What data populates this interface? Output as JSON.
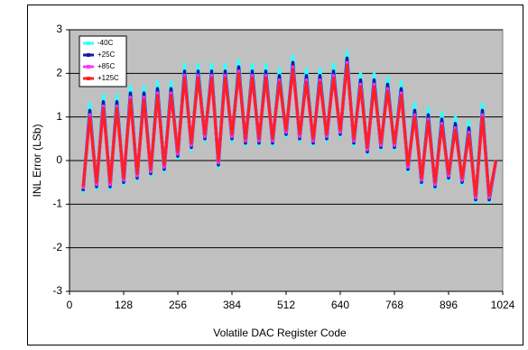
{
  "chart_data": {
    "type": "line",
    "x_label": "Volatile DAC Register Code",
    "y_label": "INL Error (LSb)",
    "x": [
      32,
      48,
      64,
      80,
      96,
      112,
      128,
      144,
      160,
      176,
      192,
      208,
      224,
      240,
      256,
      272,
      288,
      304,
      320,
      336,
      352,
      368,
      384,
      400,
      416,
      432,
      448,
      464,
      480,
      496,
      512,
      528,
      544,
      560,
      576,
      592,
      608,
      624,
      640,
      656,
      672,
      688,
      704,
      720,
      736,
      752,
      768,
      784,
      800,
      816,
      832,
      848,
      864,
      880,
      896,
      912,
      928,
      944,
      960,
      976,
      992,
      1008
    ],
    "series": [
      {
        "name": "-40C",
        "color": "#33ffff",
        "values": [
          -0.75,
          1.3,
          -0.65,
          1.5,
          -0.65,
          1.5,
          -0.55,
          1.7,
          -0.45,
          1.7,
          -0.35,
          1.8,
          -0.25,
          1.8,
          0.05,
          2.2,
          0.25,
          2.2,
          0.45,
          2.2,
          -0.15,
          2.2,
          0.45,
          2.3,
          0.35,
          2.2,
          0.35,
          2.2,
          0.35,
          2.1,
          0.55,
          2.4,
          0.45,
          2.1,
          0.35,
          2.1,
          0.45,
          2.2,
          0.55,
          2.5,
          0.35,
          2.0,
          0.15,
          2.0,
          0.25,
          1.9,
          0.25,
          1.8,
          -0.25,
          1.3,
          -0.55,
          1.2,
          -0.65,
          1.1,
          -0.45,
          1.0,
          -0.55,
          0.9,
          -0.95,
          1.3,
          -0.95,
          0.0
        ]
      },
      {
        "name": "+25C",
        "color": "#1a1aa6",
        "values": [
          -0.7,
          1.15,
          -0.6,
          1.35,
          -0.6,
          1.35,
          -0.5,
          1.55,
          -0.4,
          1.55,
          -0.3,
          1.65,
          -0.2,
          1.65,
          0.1,
          2.05,
          0.3,
          2.05,
          0.5,
          2.05,
          -0.1,
          2.05,
          0.5,
          2.15,
          0.4,
          2.05,
          0.4,
          2.05,
          0.4,
          1.95,
          0.6,
          2.25,
          0.5,
          1.95,
          0.4,
          1.95,
          0.5,
          2.05,
          0.6,
          2.35,
          0.4,
          1.85,
          0.2,
          1.85,
          0.3,
          1.75,
          0.3,
          1.65,
          -0.2,
          1.15,
          -0.5,
          1.05,
          -0.6,
          0.95,
          -0.4,
          0.85,
          -0.5,
          0.75,
          -0.9,
          1.15,
          -0.9,
          0.0
        ]
      },
      {
        "name": "+85C",
        "color": "#ff33ff",
        "values": [
          -0.65,
          1.05,
          -0.55,
          1.25,
          -0.55,
          1.25,
          -0.45,
          1.45,
          -0.35,
          1.45,
          -0.25,
          1.55,
          -0.15,
          1.55,
          0.15,
          1.95,
          0.35,
          1.95,
          0.55,
          1.95,
          -0.05,
          1.95,
          0.55,
          2.05,
          0.45,
          1.95,
          0.45,
          1.95,
          0.45,
          1.85,
          0.65,
          2.15,
          0.55,
          1.85,
          0.45,
          1.85,
          0.55,
          1.95,
          0.65,
          2.25,
          0.45,
          1.75,
          0.25,
          1.75,
          0.35,
          1.65,
          0.35,
          1.55,
          -0.15,
          1.05,
          -0.45,
          0.95,
          -0.55,
          0.85,
          -0.35,
          0.75,
          -0.45,
          0.65,
          -0.85,
          1.05,
          -0.85,
          0.0
        ]
      },
      {
        "name": "+125C",
        "color": "#ff2020",
        "values": [
          -0.6,
          1.0,
          -0.5,
          1.2,
          -0.5,
          1.2,
          -0.4,
          1.4,
          -0.3,
          1.4,
          -0.2,
          1.5,
          -0.1,
          1.5,
          0.2,
          1.9,
          0.4,
          1.9,
          0.6,
          1.9,
          0.0,
          1.9,
          0.6,
          2.0,
          0.5,
          1.9,
          0.5,
          1.9,
          0.5,
          1.8,
          0.7,
          2.1,
          0.6,
          1.8,
          0.5,
          1.8,
          0.6,
          1.9,
          0.7,
          2.2,
          0.5,
          1.7,
          0.3,
          1.7,
          0.4,
          1.6,
          0.4,
          1.5,
          -0.1,
          1.0,
          -0.4,
          0.9,
          -0.5,
          0.8,
          -0.3,
          0.7,
          -0.4,
          0.6,
          -0.8,
          1.0,
          -0.8,
          0.0
        ]
      }
    ],
    "xlim": [
      0,
      1024
    ],
    "xticks": [
      0,
      128,
      256,
      384,
      512,
      640,
      768,
      896,
      1024
    ],
    "ylim": [
      -3,
      3
    ],
    "yticks": [
      -3,
      -2,
      -1,
      0,
      1,
      2,
      3
    ],
    "grid": true,
    "legend": "upper-left",
    "plot_background": "#c0c0c0"
  }
}
